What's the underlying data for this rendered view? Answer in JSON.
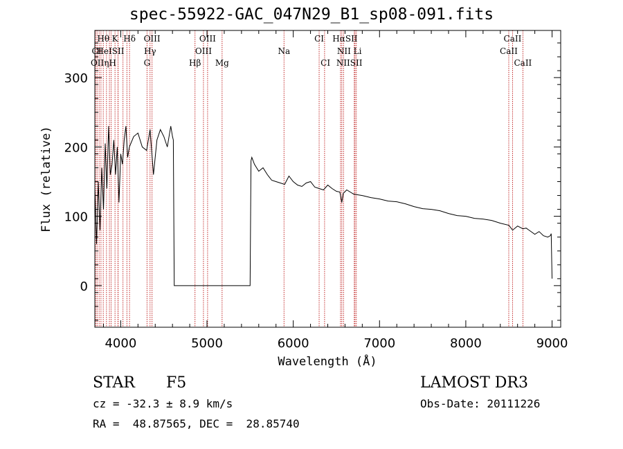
{
  "chart_data": {
    "type": "line",
    "title": "spec-55922-GAC_047N29_B1_sp08-091.fits",
    "xlabel": "Wavelength (Å)",
    "ylabel": "Flux (relative)",
    "xlim": [
      3700,
      9100
    ],
    "ylim": [
      -60,
      368
    ],
    "xticks": [
      4000,
      5000,
      6000,
      7000,
      8000,
      9000
    ],
    "yticks": [
      0,
      100,
      200,
      300
    ],
    "series": [
      {
        "name": "flux",
        "x": [
          3700,
          3720,
          3740,
          3760,
          3780,
          3800,
          3820,
          3840,
          3860,
          3880,
          3900,
          3920,
          3940,
          3960,
          3980,
          4000,
          4020,
          4040,
          4060,
          4080,
          4100,
          4150,
          4200,
          4250,
          4300,
          4340,
          4380,
          4420,
          4460,
          4500,
          4540,
          4580,
          4600,
          4610,
          4620,
          5500,
          5510,
          5520,
          5550,
          5600,
          5650,
          5700,
          5750,
          5800,
          5850,
          5900,
          5950,
          6000,
          6050,
          6100,
          6150,
          6200,
          6250,
          6300,
          6350,
          6400,
          6450,
          6500,
          6540,
          6563,
          6580,
          6620,
          6700,
          6800,
          6900,
          7000,
          7100,
          7200,
          7300,
          7400,
          7500,
          7600,
          7700,
          7800,
          7900,
          8000,
          8100,
          8200,
          8300,
          8400,
          8500,
          8542,
          8600,
          8662,
          8700,
          8800,
          8850,
          8900,
          8950,
          8980,
          8990,
          9000
        ],
        "y": [
          140,
          60,
          150,
          80,
          170,
          110,
          205,
          140,
          230,
          160,
          175,
          210,
          160,
          200,
          120,
          190,
          175,
          210,
          230,
          185,
          200,
          215,
          220,
          200,
          195,
          225,
          160,
          210,
          225,
          215,
          200,
          230,
          215,
          210,
          0,
          0,
          180,
          185,
          175,
          165,
          170,
          160,
          152,
          150,
          148,
          146,
          158,
          150,
          145,
          143,
          148,
          150,
          142,
          140,
          138,
          145,
          140,
          136,
          135,
          120,
          133,
          138,
          132,
          130,
          127,
          125,
          122,
          121,
          118,
          114,
          111,
          110,
          108,
          104,
          101,
          100,
          97,
          96,
          94,
          90,
          87,
          80,
          86,
          82,
          83,
          74,
          78,
          72,
          70,
          72,
          75,
          10
        ]
      }
    ],
    "lines_top": [
      {
        "label": "Hθ",
        "x": 3798
      },
      {
        "label": "K",
        "x": 3934
      },
      {
        "label": "Hδ",
        "x": 4102
      },
      {
        "label": "OIII",
        "x": 4363
      },
      {
        "label": "OIII",
        "x": 5007
      },
      {
        "label": "CI",
        "x": 6300
      },
      {
        "label": "HαSII",
        "x": 6600
      },
      {
        "label": "CaII",
        "x": 8542
      }
    ],
    "lines_mid": [
      {
        "label": "CI",
        "x": 3720
      },
      {
        "label": "HeISII",
        "x": 3880
      },
      {
        "label": "Hγ",
        "x": 4340
      },
      {
        "label": "OIII",
        "x": 4959
      },
      {
        "label": "Na",
        "x": 5893
      },
      {
        "label": "NII Li",
        "x": 6650
      },
      {
        "label": "CaII",
        "x": 8498
      }
    ],
    "lines_low": [
      {
        "label": "OIIηH",
        "x": 3800
      },
      {
        "label": "G",
        "x": 4305
      },
      {
        "label": "Hβ",
        "x": 4861
      },
      {
        "label": "Mg",
        "x": 5175
      },
      {
        "label": "CI",
        "x": 6373
      },
      {
        "label": "NIISII",
        "x": 6650
      },
      {
        "label": "CaII",
        "x": 8662
      }
    ],
    "marker_lines": [
      3711,
      3727,
      3750,
      3771,
      3798,
      3835,
      3869,
      3889,
      3934,
      3968,
      3970,
      4026,
      4072,
      4102,
      4305,
      4340,
      4363,
      4861,
      4959,
      5007,
      5175,
      5893,
      6300,
      6363,
      6548,
      6563,
      6583,
      6707,
      6716,
      6731,
      8498,
      8542,
      8662
    ]
  },
  "info": {
    "object_class": "STAR",
    "subclass": "F5",
    "redshift": "cz = -32.3 ± 8.9 km/s",
    "coords": "RA =  48.87565, DEC =  28.85740",
    "survey": "LAMOST DR3",
    "obs_date": "Obs-Date: 20111226"
  },
  "colors": {
    "marker": "#c22a2a",
    "ink": "#000000"
  }
}
